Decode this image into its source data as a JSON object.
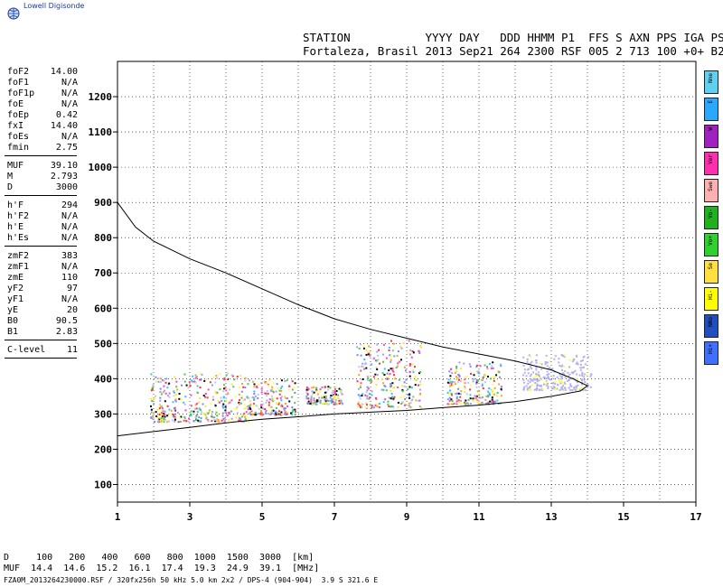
{
  "logo": {
    "text": "Lowell Digisonde"
  },
  "header": {
    "line1": "STATION           YYYY DAY   DDD HHMM P1  FFS S AXN PPS IGA PS",
    "line2": "Fortaleza, Brasil 2013 Sep21 264 2300 RSF 005 2 713 100 +0+ B2"
  },
  "params": [
    {
      "label": "foF2",
      "value": "14.00"
    },
    {
      "label": "foF1",
      "value": "N/A"
    },
    {
      "label": "foF1p",
      "value": "N/A"
    },
    {
      "label": "foE",
      "value": "N/A"
    },
    {
      "label": "foEp",
      "value": "0.42"
    },
    {
      "label": "fxI",
      "value": "14.40"
    },
    {
      "label": "foEs",
      "value": "N/A"
    },
    {
      "label": "fmin",
      "value": "2.75"
    },
    {
      "label": "MUF",
      "value": "39.10"
    },
    {
      "label": "M",
      "value": "2.793"
    },
    {
      "label": "D",
      "value": "3000"
    },
    {
      "label": "h'F",
      "value": "294"
    },
    {
      "label": "h'F2",
      "value": "N/A"
    },
    {
      "label": "h'E",
      "value": "N/A"
    },
    {
      "label": "h'Es",
      "value": "N/A"
    },
    {
      "label": "zmF2",
      "value": "383"
    },
    {
      "label": "zmF1",
      "value": "N/A"
    },
    {
      "label": "zmE",
      "value": "110"
    },
    {
      "label": "yF2",
      "value": "97"
    },
    {
      "label": "yF1",
      "value": "N/A"
    },
    {
      "label": "yE",
      "value": "20"
    },
    {
      "label": "B0",
      "value": "90.5"
    },
    {
      "label": "B1",
      "value": "2.83"
    },
    {
      "label": "C-level",
      "value": "11"
    }
  ],
  "bottom": {
    "line1": "D     100   200   400   600   800  1000  1500  3000  [km]",
    "line2": "MUF  14.4  14.6  15.2  16.1  17.4  19.3  24.9  39.1  [MHz]",
    "line3": "FZA0M_2013264230000.RSF / 320fx256h 50 kHz 5.0 km 2x2 / DPS-4 (904-904)  3.9 S 321.6 E"
  },
  "legend": [
    {
      "label": "Nne",
      "color": "#5fd0f0"
    },
    {
      "label": "E",
      "color": "#2aa8ff"
    },
    {
      "label": "W",
      "color": "#a020c0"
    },
    {
      "label": "Ver",
      "color": "#ff30b0"
    },
    {
      "label": "Swe",
      "color": "#ffb0b0"
    },
    {
      "label": "Vo-",
      "color": "#20b020"
    },
    {
      "label": "Vo+",
      "color": "#30d030"
    },
    {
      "label": "Se",
      "color": "#ffe040"
    },
    {
      "label": "Hi-",
      "color": "#ffff00"
    },
    {
      "label": "NNo",
      "color": "#2050c0"
    },
    {
      "label": "Hi+",
      "color": "#4070ff"
    }
  ],
  "chart_data": {
    "type": "scatter",
    "title": "",
    "xlabel": "",
    "ylabel": "",
    "xlim": [
      1,
      17
    ],
    "ylim": [
      50,
      1300
    ],
    "xticks": [
      1,
      3,
      5,
      7,
      9,
      11,
      13,
      15,
      17
    ],
    "yticks": [
      100,
      200,
      300,
      400,
      500,
      600,
      700,
      800,
      900,
      1000,
      1100,
      1200
    ],
    "grid": true,
    "profile_curve": [
      [
        1.0,
        900
      ],
      [
        1.5,
        830
      ],
      [
        2,
        790
      ],
      [
        3,
        740
      ],
      [
        4,
        700
      ],
      [
        5,
        655
      ],
      [
        6,
        610
      ],
      [
        7,
        570
      ],
      [
        8,
        540
      ],
      [
        9,
        515
      ],
      [
        10,
        490
      ],
      [
        11,
        470
      ],
      [
        12,
        450
      ],
      [
        13,
        425
      ],
      [
        13.6,
        400
      ],
      [
        14.0,
        380
      ],
      [
        13.8,
        365
      ],
      [
        13,
        350
      ],
      [
        12,
        335
      ],
      [
        11,
        325
      ],
      [
        10,
        318
      ],
      [
        9,
        310
      ],
      [
        8,
        305
      ],
      [
        7,
        300
      ],
      [
        6,
        292
      ],
      [
        5,
        285
      ],
      [
        4,
        275
      ],
      [
        3,
        262
      ],
      [
        2,
        250
      ],
      [
        1,
        238
      ]
    ],
    "echo_bands": [
      {
        "x0": 1.9,
        "x1": 4.6,
        "y0": 280,
        "y1": 420
      },
      {
        "x0": 4.6,
        "x1": 5.9,
        "y0": 300,
        "y1": 400
      },
      {
        "x0": 6.2,
        "x1": 7.2,
        "y0": 330,
        "y1": 380
      },
      {
        "x0": 7.6,
        "x1": 9.4,
        "y0": 320,
        "y1": 510
      },
      {
        "x0": 10.1,
        "x1": 11.6,
        "y0": 330,
        "y1": 450
      },
      {
        "x0": 12.2,
        "x1": 14.1,
        "y0": 370,
        "y1": 470
      }
    ]
  }
}
